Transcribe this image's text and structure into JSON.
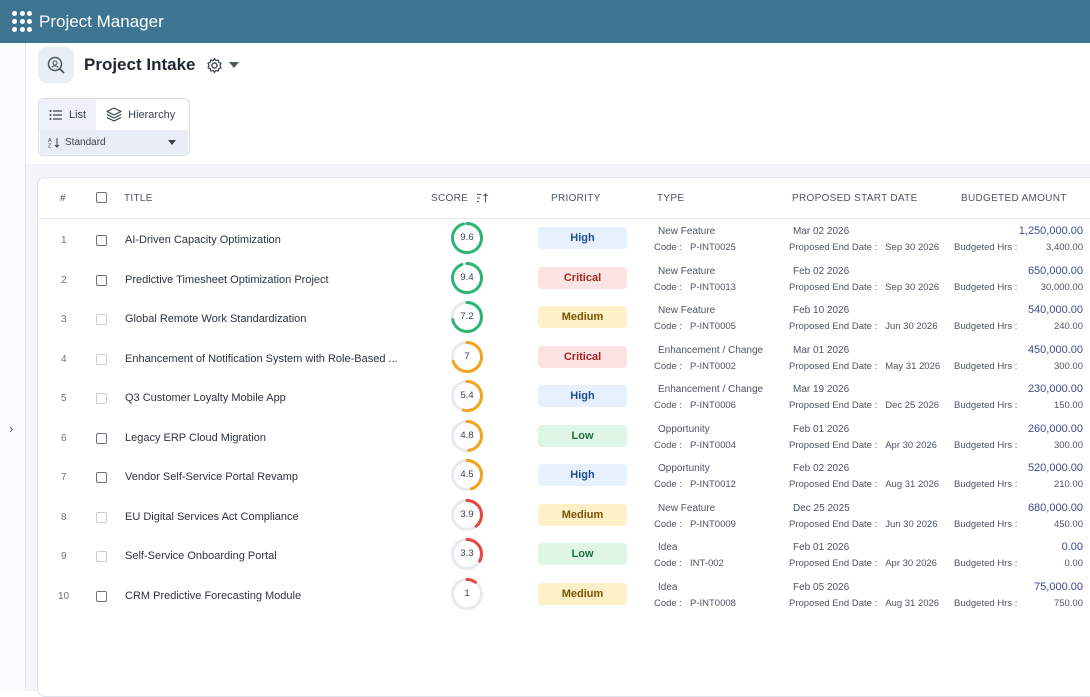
{
  "app": {
    "title": "Project Manager"
  },
  "page": {
    "title": "Project Intake"
  },
  "views": {
    "list_label": "List",
    "hierarchy_label": "Hierarchy",
    "sort_label": "Standard"
  },
  "columns": {
    "num": "#",
    "title": "TITLE",
    "score": "SCORE",
    "priority": "PRIORITY",
    "type": "TYPE",
    "start": "PROPOSED START DATE",
    "budget": "BUDGETED AMOUNT"
  },
  "labels": {
    "code": "Code :",
    "end": "Proposed End Date :",
    "hrs": "Budgeted Hrs :"
  },
  "priority_colors": {
    "High": {
      "bg": "#e7f1fd",
      "fg": "#1d4f91"
    },
    "Critical": {
      "bg": "#fbe3e3",
      "fg": "#a3271f"
    },
    "Medium": {
      "bg": "#fdf0c7",
      "fg": "#7a5200"
    },
    "Low": {
      "bg": "#dff5e6",
      "fg": "#1f6b3a"
    }
  },
  "rows": [
    {
      "num": "1",
      "title": "AI-Driven Capacity Optimization",
      "score": "9.6",
      "priority": "High",
      "type": "New Feature",
      "code": "P-INT0025",
      "start": "Mar 02 2026",
      "end": "Sep 30 2026",
      "amount": "1,250,000.00",
      "hrs": "3,400.00"
    },
    {
      "num": "2",
      "title": "Predictive Timesheet Optimization Project",
      "score": "9.4",
      "priority": "Critical",
      "type": "New Feature",
      "code": "P-INT0013",
      "start": "Feb 02 2026",
      "end": "Sep 30 2026",
      "amount": "650,000.00",
      "hrs": "30,000.00"
    },
    {
      "num": "3",
      "title": "Global Remote Work Standardization",
      "score": "7.2",
      "priority": "Medium",
      "type": "New Feature",
      "code": "P-INT0005",
      "start": "Feb 10 2026",
      "end": "Jun 30 2026",
      "amount": "540,000.00",
      "hrs": "240.00"
    },
    {
      "num": "4",
      "title": "Enhancement of Notification System with Role-Based ...",
      "score": "7",
      "priority": "Critical",
      "type": "Enhancement / Change",
      "code": "P-INT0002",
      "start": "Mar 01 2026",
      "end": "May 31 2026",
      "amount": "450,000.00",
      "hrs": "300.00"
    },
    {
      "num": "5",
      "title": "Q3 Customer Loyalty Mobile App",
      "score": "5.4",
      "priority": "High",
      "type": "Enhancement / Change",
      "code": "P-INT0006",
      "start": "Mar 19 2026",
      "end": "Dec 25 2026",
      "amount": "230,000.00",
      "hrs": "150.00"
    },
    {
      "num": "6",
      "title": "Legacy ERP Cloud Migration",
      "score": "4.8",
      "priority": "Low",
      "type": "Opportunity",
      "code": "P-INT0004",
      "start": "Feb 01 2026",
      "end": "Apr 30 2026",
      "amount": "260,000.00",
      "hrs": "300.00"
    },
    {
      "num": "7",
      "title": "Vendor Self-Service Portal Revamp",
      "score": "4.5",
      "priority": "High",
      "type": "Opportunity",
      "code": "P-INT0012",
      "start": "Feb 02 2026",
      "end": "Aug 31 2026",
      "amount": "520,000.00",
      "hrs": "210.00"
    },
    {
      "num": "8",
      "title": "EU Digital Services Act Compliance",
      "score": "3.9",
      "priority": "Medium",
      "type": "New Feature",
      "code": "P-INT0009",
      "start": "Dec 25 2025",
      "end": "Jun 30 2026",
      "amount": "680,000.00",
      "hrs": "450.00"
    },
    {
      "num": "9",
      "title": "Self-Service Onboarding Portal",
      "score": "3.3",
      "priority": "Low",
      "type": "Idea",
      "code": "INT-002",
      "start": "Feb 01 2026",
      "end": "Apr 30 2026",
      "amount": "0.00",
      "hrs": "0.00"
    },
    {
      "num": "10",
      "title": "CRM Predictive Forecasting Module",
      "score": "1",
      "priority": "Medium",
      "type": "Idea",
      "code": "P-INT0008",
      "start": "Feb 05 2026",
      "end": "Aug 31 2026",
      "amount": "75,000.00",
      "hrs": "750.00"
    }
  ]
}
